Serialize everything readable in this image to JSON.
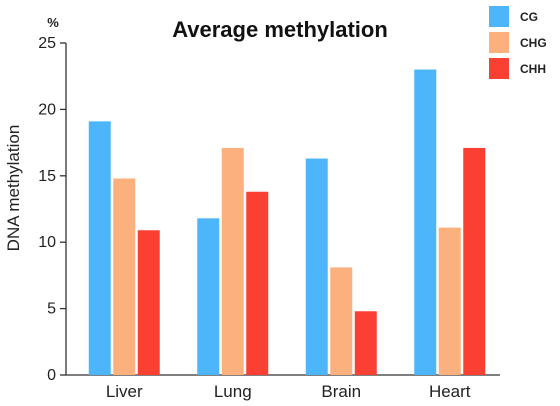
{
  "chart_data": {
    "type": "bar",
    "title": "Average methylation",
    "ylabel": "DNA methylation",
    "yunit": "%",
    "categories": [
      "Liver",
      "Lung",
      "Brain",
      "Heart"
    ],
    "ylim": [
      0,
      25
    ],
    "yticks": [
      0,
      5,
      10,
      15,
      20,
      25
    ],
    "grid": false,
    "legend_position": "top-right",
    "series": [
      {
        "name": "CG",
        "color": "#4db6fa",
        "values": [
          19.1,
          11.8,
          16.3,
          23.0
        ]
      },
      {
        "name": "CHG",
        "color": "#fcb07e",
        "values": [
          14.8,
          17.1,
          8.1,
          11.1
        ]
      },
      {
        "name": "CHH",
        "color": "#fa4033",
        "values": [
          10.9,
          13.8,
          4.8,
          17.1
        ]
      }
    ]
  }
}
